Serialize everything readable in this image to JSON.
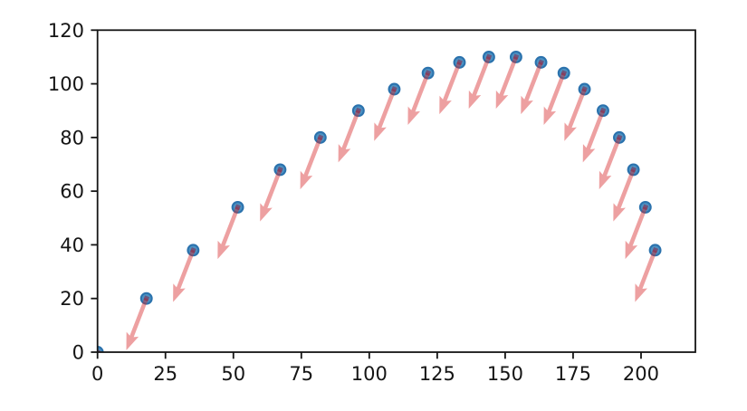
{
  "chart_data": {
    "type": "scatter",
    "subtype": "scatter-with-quiver-arrows",
    "title": "",
    "xlabel": "",
    "ylabel": "",
    "points": {
      "x": [
        0,
        18,
        35.2,
        51.6,
        67.2,
        82,
        96,
        109.2,
        121.6,
        133.2,
        144,
        154,
        163.2,
        171.6,
        179.2,
        186,
        192,
        197.2,
        201.6,
        205.2
      ],
      "y": [
        0,
        20,
        38,
        54,
        68,
        80,
        90,
        98,
        104,
        108,
        110,
        110,
        108,
        104,
        98,
        90,
        80,
        68,
        54,
        38
      ]
    },
    "arrow_vector": {
      "u": -7.4,
      "v": -19.3
    },
    "xlim": [
      0,
      220
    ],
    "ylim": [
      0,
      120
    ],
    "xticks": [
      0,
      25,
      50,
      75,
      100,
      125,
      150,
      175,
      200
    ],
    "yticks": [
      0,
      20,
      40,
      60,
      80,
      100,
      120
    ],
    "grid": false,
    "legend": null,
    "colors": {
      "marker_fill": "#4c92c3",
      "marker_edge": "#2b72ad",
      "arrow": "#d62728",
      "arrow_alpha": 0.44,
      "arrow_tail_dot": "#8b1a3a",
      "axis": "#151515",
      "background": "#ffffff"
    }
  }
}
